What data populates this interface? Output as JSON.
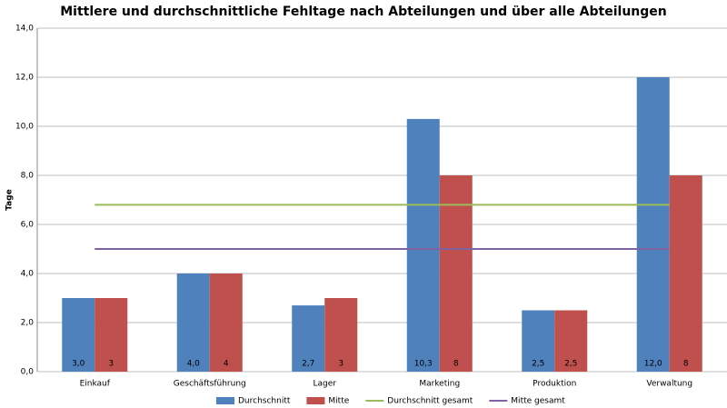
{
  "chart_data": {
    "type": "bar",
    "title": "Mittlere und durchschnittliche Fehltage nach Abteilungen und über alle Abteilungen",
    "y_label": "Tage",
    "categories": [
      "Einkauf",
      "Geschäftsführung",
      "Lager",
      "Marketing",
      "Produktion",
      "Verwaltung"
    ],
    "series": [
      {
        "name": "Durchschnitt",
        "color": "#4f81bd",
        "values": [
          3.0,
          4.0,
          2.7,
          10.3,
          2.5,
          12.0
        ],
        "value_labels": [
          "3,0",
          "4,0",
          "2,7",
          "10,3",
          "2,5",
          "12,0"
        ]
      },
      {
        "name": "Mitte",
        "color": "#c0504d",
        "values": [
          3,
          4,
          3,
          8,
          2.5,
          8
        ],
        "value_labels": [
          "3",
          "4",
          "3",
          "8",
          "2,5",
          "8"
        ]
      },
      {
        "name": "Durchschnitt gesamt",
        "type": "line",
        "color": "#9bbb59",
        "values": [
          6.8,
          6.8,
          6.8,
          6.8,
          6.8,
          6.8
        ]
      },
      {
        "name": "Mitte gesamt",
        "type": "line",
        "color": "#8064a2",
        "values": [
          5,
          5,
          5,
          5,
          5,
          5
        ]
      }
    ],
    "ylim": [
      0,
      14
    ],
    "yticks": [
      {
        "value": 0,
        "label": "0,0"
      },
      {
        "value": 2,
        "label": "2,0"
      },
      {
        "value": 4,
        "label": "4,0"
      },
      {
        "value": 6,
        "label": "6,0"
      },
      {
        "value": 8,
        "label": "8,0"
      },
      {
        "value": 10,
        "label": "10,0"
      },
      {
        "value": 12,
        "label": "12,0"
      },
      {
        "value": 14,
        "label": "14,0"
      }
    ],
    "grid": true,
    "legend": "bottom"
  }
}
